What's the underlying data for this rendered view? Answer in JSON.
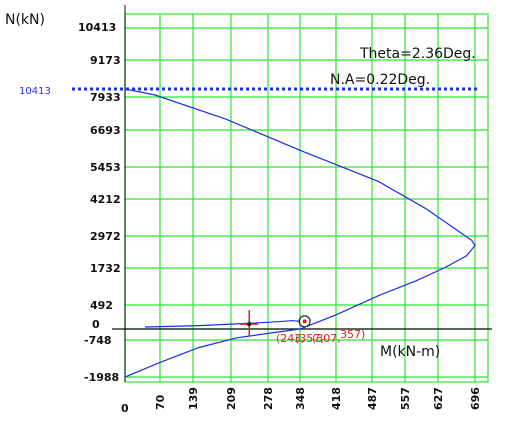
{
  "chart_data": {
    "type": "line",
    "ylabel": "N(kN)",
    "xlabel": "M(kN-m)",
    "x_ticks": [
      "0",
      "70",
      "139",
      "209",
      "278",
      "348",
      "418",
      "487",
      "557",
      "627",
      "696"
    ],
    "y_ticks": [
      "-1988",
      "-748",
      "0",
      "492",
      "1732",
      "2972",
      "4212",
      "5453",
      "6693",
      "7933",
      "9173",
      "10413"
    ],
    "x_tick_values": [
      0,
      70,
      139,
      209,
      278,
      348,
      418,
      487,
      557,
      627,
      696
    ],
    "y_tick_values": [
      -1988,
      -748,
      0,
      492,
      1732,
      2972,
      4212,
      5453,
      6693,
      7933,
      9173,
      10413
    ],
    "xlim": [
      0,
      696
    ],
    "ylim": [
      -1988,
      10413
    ],
    "grid": true,
    "annotations": {
      "theta": "Theta=2.36Deg.",
      "na": "N.A=0.22Deg.",
      "cap_label": "10413",
      "point_label_a": "(243,",
      "point_label_b": "(357,",
      "point_label_c": "(307,",
      "point_label_d": "357)"
    },
    "cap_line_value": 8200,
    "interaction_curve": {
      "name": "",
      "x": [
        0,
        60,
        200,
        350,
        500,
        600,
        660,
        690,
        696,
        680,
        640,
        580,
        500,
        420,
        348,
        278,
        220,
        150,
        70,
        0
      ],
      "y": [
        8200,
        8000,
        7100,
        6000,
        4900,
        3900,
        3200,
        2800,
        2600,
        2200,
        1750,
        1300,
        800,
        300,
        0,
        -300,
        -600,
        -1000,
        -1500,
        -1988
      ]
    },
    "inner_curve": {
      "x": [
        40,
        150,
        250,
        300,
        330,
        348
      ],
      "y": [
        40,
        70,
        120,
        150,
        170,
        160
      ]
    },
    "points": [
      {
        "x": 243,
        "y": 100,
        "type": "cross"
      },
      {
        "x": 357,
        "y": 157,
        "type": "circle"
      }
    ],
    "colors": {
      "grid": "#2ee62e",
      "curve": "#1a2fe8",
      "axis": "#111111",
      "point": "#e02020",
      "cap_line": "#1a2fe8"
    }
  }
}
